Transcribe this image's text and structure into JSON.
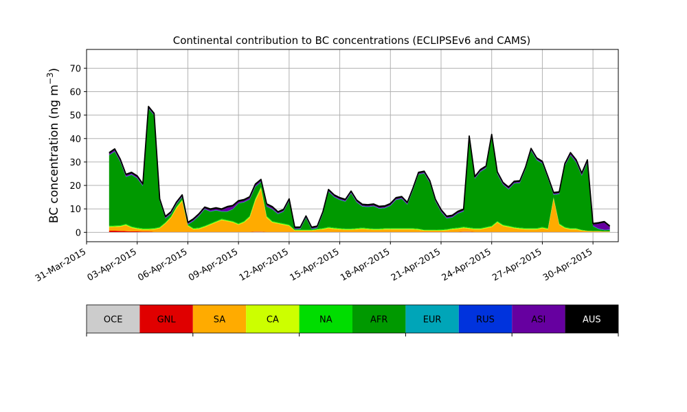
{
  "chart_data": {
    "type": "area",
    "title": "Continental contribution to BC concentrations (ECLIPSEv6 and CAMS)",
    "ylabel_text": "BC concentration (ng m",
    "ylabel_unit_exponent": "−3",
    "ylabel_suffix": ")",
    "xlabel": "",
    "grid": true,
    "legend_placement": "bottom",
    "xlim": [
      "2015-03-31T00:00",
      "2015-05-01T12:00"
    ],
    "ylim": [
      -4,
      78
    ],
    "x_ticks": [
      "31-Mar-2015",
      "03-Apr-2015",
      "06-Apr-2015",
      "09-Apr-2015",
      "12-Apr-2015",
      "15-Apr-2015",
      "18-Apr-2015",
      "21-Apr-2015",
      "24-Apr-2015",
      "27-Apr-2015",
      "30-Apr-2015"
    ],
    "x_tick_dates": [
      "2015-03-31",
      "2015-04-03",
      "2015-04-06",
      "2015-04-09",
      "2015-04-12",
      "2015-04-15",
      "2015-04-18",
      "2015-04-21",
      "2015-04-24",
      "2015-04-27",
      "2015-04-30"
    ],
    "y_ticks": [
      0,
      10,
      20,
      30,
      40,
      50,
      60,
      70
    ],
    "x": [
      "2015-04-01T08:00",
      "2015-04-01T16:00",
      "2015-04-02T00:00",
      "2015-04-02T08:00",
      "2015-04-02T16:00",
      "2015-04-03T00:00",
      "2015-04-03T08:00",
      "2015-04-03T16:00",
      "2015-04-04T00:00",
      "2015-04-04T08:00",
      "2015-04-04T16:00",
      "2015-04-05T00:00",
      "2015-04-05T08:00",
      "2015-04-05T16:00",
      "2015-04-06T00:00",
      "2015-04-06T08:00",
      "2015-04-06T16:00",
      "2015-04-07T00:00",
      "2015-04-07T08:00",
      "2015-04-07T16:00",
      "2015-04-08T00:00",
      "2015-04-08T08:00",
      "2015-04-08T16:00",
      "2015-04-09T00:00",
      "2015-04-09T08:00",
      "2015-04-09T16:00",
      "2015-04-10T00:00",
      "2015-04-10T08:00",
      "2015-04-10T16:00",
      "2015-04-11T00:00",
      "2015-04-11T08:00",
      "2015-04-11T16:00",
      "2015-04-12T00:00",
      "2015-04-12T08:00",
      "2015-04-12T16:00",
      "2015-04-13T00:00",
      "2015-04-13T08:00",
      "2015-04-13T16:00",
      "2015-04-14T00:00",
      "2015-04-14T08:00",
      "2015-04-14T16:00",
      "2015-04-15T00:00",
      "2015-04-15T08:00",
      "2015-04-15T16:00",
      "2015-04-16T00:00",
      "2015-04-16T08:00",
      "2015-04-16T16:00",
      "2015-04-17T00:00",
      "2015-04-17T08:00",
      "2015-04-17T16:00",
      "2015-04-18T00:00",
      "2015-04-18T08:00",
      "2015-04-18T16:00",
      "2015-04-19T00:00",
      "2015-04-19T08:00",
      "2015-04-19T16:00",
      "2015-04-20T00:00",
      "2015-04-20T08:00",
      "2015-04-20T16:00",
      "2015-04-21T00:00",
      "2015-04-21T08:00",
      "2015-04-21T16:00",
      "2015-04-22T00:00",
      "2015-04-22T08:00",
      "2015-04-22T16:00",
      "2015-04-23T00:00",
      "2015-04-23T08:00",
      "2015-04-23T16:00",
      "2015-04-24T00:00",
      "2015-04-24T08:00",
      "2015-04-24T16:00",
      "2015-04-25T00:00",
      "2015-04-25T08:00",
      "2015-04-25T16:00",
      "2015-04-26T00:00",
      "2015-04-26T08:00",
      "2015-04-26T16:00",
      "2015-04-27T00:00",
      "2015-04-27T08:00",
      "2015-04-27T16:00",
      "2015-04-28T00:00",
      "2015-04-28T08:00",
      "2015-04-28T16:00",
      "2015-04-29T00:00",
      "2015-04-29T08:00",
      "2015-04-29T16:00",
      "2015-04-30T00:00",
      "2015-04-30T08:00",
      "2015-04-30T16:00",
      "2015-05-01T00:00"
    ],
    "series": [
      {
        "name": "OCE",
        "color": "#cccccc",
        "values": [
          0.1,
          0.1,
          0.1,
          0.1,
          0.1,
          0.1,
          0.1,
          0.1,
          0.1,
          0.1,
          0.1,
          0.1,
          0.1,
          0.1,
          0.1,
          0.1,
          0.1,
          0.1,
          0.1,
          0.1,
          0.1,
          0.1,
          0.1,
          0.1,
          0.1,
          0.1,
          0.2,
          0.2,
          0.1,
          0.1,
          0.1,
          0.1,
          0.1,
          0.1,
          0.1,
          0.1,
          0.1,
          0.1,
          0.1,
          0.1,
          0.1,
          0.1,
          0.1,
          0.1,
          0.1,
          0.1,
          0.1,
          0.1,
          0.1,
          0.1,
          0.1,
          0.1,
          0.1,
          0.1,
          0.1,
          0.1,
          0.1,
          0.1,
          0.1,
          0.1,
          0.1,
          0.1,
          0.1,
          0.2,
          0.2,
          0.1,
          0.1,
          0.1,
          0.1,
          0.1,
          0.1,
          0.1,
          0.1,
          0.1,
          0.1,
          0.1,
          0.1,
          0.1,
          0.1,
          0.1,
          0.1,
          0.1,
          0.1,
          0.1,
          0.1,
          0.1,
          0.1,
          0.1,
          0.1,
          0.1
        ]
      },
      {
        "name": "GNL",
        "color": "#e00000",
        "values": [
          0.6,
          0.6,
          0.5,
          0.4,
          0.3,
          0.3,
          0.2,
          0.2,
          0.1,
          0.1,
          0.1,
          0.1,
          0.1,
          0.1,
          0.1,
          0.1,
          0.1,
          0.1,
          0.1,
          0.1,
          0.1,
          0.1,
          0.1,
          0.1,
          0.1,
          0.1,
          0.1,
          0.1,
          0.1,
          0.1,
          0.1,
          0.1,
          0.1,
          0.1,
          0.1,
          0.1,
          0.1,
          0.1,
          0.1,
          0.1,
          0.1,
          0.1,
          0.1,
          0.1,
          0.1,
          0.1,
          0.1,
          0.1,
          0.1,
          0.1,
          0.1,
          0.1,
          0.1,
          0.1,
          0.1,
          0.1,
          0.1,
          0.1,
          0.1,
          0.1,
          0.1,
          0.1,
          0.1,
          0.1,
          0.1,
          0.1,
          0.1,
          0.1,
          0.1,
          0.1,
          0.1,
          0.1,
          0.1,
          0.1,
          0.1,
          0.1,
          0.1,
          0.1,
          0.1,
          0.1,
          0.1,
          0.1,
          0.1,
          0.1,
          0.1,
          0.1,
          0.1,
          0.1,
          0.1,
          0.1
        ]
      },
      {
        "name": "SA",
        "color": "#ffab00",
        "values": [
          1.5,
          1.6,
          1.8,
          2.5,
          1.5,
          1.0,
          0.8,
          0.8,
          1.0,
          1.5,
          3.5,
          6.0,
          10.0,
          13.0,
          2.5,
          1.0,
          1.2,
          2.0,
          3.0,
          4.0,
          5.0,
          4.5,
          4.0,
          3.0,
          4.0,
          6.0,
          13.0,
          18.0,
          6.0,
          4.0,
          3.5,
          3.0,
          2.5,
          0.5,
          0.5,
          0.5,
          0.5,
          0.8,
          1.0,
          1.5,
          1.2,
          1.0,
          0.8,
          0.8,
          1.0,
          1.2,
          1.0,
          0.8,
          0.8,
          1.0,
          1.0,
          1.0,
          1.0,
          1.0,
          1.0,
          0.8,
          0.5,
          0.5,
          0.5,
          0.5,
          0.6,
          1.0,
          1.2,
          1.5,
          1.2,
          1.0,
          1.0,
          1.5,
          2.0,
          4.0,
          2.5,
          2.0,
          1.5,
          1.2,
          1.0,
          1.0,
          1.0,
          1.5,
          1.0,
          14.0,
          3.0,
          1.5,
          1.0,
          1.0,
          0.5,
          0.3,
          0.2,
          0.2,
          0.1,
          0.1
        ]
      },
      {
        "name": "CA",
        "color": "#ccff00",
        "values": [
          0.3,
          0.3,
          0.3,
          0.3,
          0.3,
          0.3,
          0.3,
          0.3,
          0.3,
          0.3,
          0.3,
          0.3,
          0.5,
          0.5,
          0.3,
          0.3,
          0.3,
          0.3,
          0.3,
          0.3,
          0.3,
          0.3,
          0.3,
          0.3,
          0.3,
          0.5,
          0.8,
          0.8,
          0.5,
          0.3,
          0.3,
          0.3,
          0.3,
          0.2,
          0.2,
          0.2,
          0.2,
          0.2,
          0.3,
          0.3,
          0.3,
          0.3,
          0.3,
          0.3,
          0.3,
          0.3,
          0.3,
          0.3,
          0.3,
          0.3,
          0.3,
          0.3,
          0.3,
          0.3,
          0.3,
          0.3,
          0.2,
          0.2,
          0.2,
          0.2,
          0.3,
          0.3,
          0.3,
          0.3,
          0.3,
          0.3,
          0.3,
          0.3,
          0.3,
          0.3,
          0.3,
          0.3,
          0.3,
          0.3,
          0.3,
          0.3,
          0.3,
          0.3,
          0.3,
          0.5,
          0.3,
          0.3,
          0.3,
          0.3,
          0.2,
          0.1,
          0.1,
          0.1,
          0.1,
          0.1
        ]
      },
      {
        "name": "NA",
        "color": "#00dd00",
        "values": [
          0.3,
          0.3,
          0.3,
          0.3,
          0.3,
          0.3,
          0.3,
          0.3,
          0.3,
          0.3,
          0.3,
          0.3,
          0.3,
          0.3,
          0.3,
          0.3,
          0.3,
          0.3,
          0.3,
          0.3,
          0.3,
          0.3,
          0.3,
          0.3,
          0.3,
          0.3,
          0.3,
          0.3,
          0.3,
          0.3,
          0.3,
          0.3,
          0.3,
          0.2,
          0.2,
          0.2,
          0.2,
          0.3,
          0.3,
          0.3,
          0.3,
          0.3,
          0.3,
          0.3,
          0.3,
          0.3,
          0.3,
          0.3,
          0.3,
          0.3,
          0.3,
          0.3,
          0.3,
          0.3,
          0.3,
          0.3,
          0.2,
          0.2,
          0.2,
          0.3,
          0.3,
          0.3,
          0.3,
          0.3,
          0.3,
          0.3,
          0.3,
          0.3,
          0.3,
          0.3,
          0.3,
          0.3,
          0.3,
          0.3,
          0.3,
          0.3,
          0.3,
          0.3,
          0.3,
          0.3,
          0.3,
          0.3,
          0.3,
          0.3,
          0.2,
          0.1,
          0.1,
          0.1,
          0.1,
          0.1
        ]
      },
      {
        "name": "AFR",
        "color": "#009900",
        "values": [
          30.0,
          31.5,
          27.0,
          20.0,
          22.0,
          21.0,
          18.0,
          51.0,
          48.0,
          11.0,
          1.5,
          1.0,
          1.0,
          1.0,
          0.0,
          3.0,
          5.0,
          7.0,
          5.0,
          4.5,
          3.0,
          3.5,
          5.0,
          8.5,
          8.0,
          7.0,
          5.0,
          2.0,
          4.0,
          5.0,
          3.5,
          5.0,
          10.0,
          0.2,
          0.3,
          5.0,
          0.2,
          0.3,
          6.0,
          15.0,
          13.0,
          12.0,
          11.5,
          15.0,
          11.0,
          9.0,
          9.0,
          9.5,
          8.5,
          8.5,
          9.5,
          12.0,
          12.5,
          10.0,
          16.0,
          23.0,
          24.0,
          20.0,
          12.0,
          7.5,
          4.5,
          4.5,
          6.0,
          6.5,
          38.0,
          21.0,
          24.0,
          25.0,
          38.0,
          20.0,
          17.0,
          15.5,
          18.5,
          19.0,
          25.0,
          33.0,
          29.0,
          27.0,
          21.0,
          1.0,
          12.5,
          26.0,
          31.0,
          28.0,
          23.0,
          29.0,
          2.0,
          0.8,
          0.4,
          0.5
        ]
      },
      {
        "name": "EUR",
        "color": "#00a5b8",
        "values": [
          0.1,
          0.1,
          0.1,
          0.1,
          0.1,
          0.1,
          0.1,
          0.1,
          0.1,
          0.1,
          0.1,
          0.1,
          0.1,
          0.1,
          0.1,
          0.1,
          0.1,
          0.1,
          0.1,
          0.1,
          0.1,
          0.1,
          0.1,
          0.1,
          0.1,
          0.1,
          0.1,
          0.1,
          0.1,
          0.1,
          0.1,
          0.1,
          0.1,
          0.1,
          0.1,
          0.1,
          0.1,
          0.1,
          0.1,
          0.1,
          0.1,
          0.1,
          0.1,
          0.1,
          0.1,
          0.1,
          0.1,
          0.1,
          0.1,
          0.1,
          0.1,
          0.1,
          0.1,
          0.1,
          0.1,
          0.1,
          0.1,
          0.1,
          0.1,
          0.1,
          0.1,
          0.1,
          0.1,
          0.1,
          0.1,
          0.1,
          0.1,
          0.1,
          0.1,
          0.1,
          0.1,
          0.1,
          0.1,
          0.1,
          0.1,
          0.1,
          0.1,
          0.1,
          0.1,
          0.1,
          0.1,
          0.1,
          0.1,
          0.1,
          0.1,
          0.1,
          0.1,
          0.1,
          0.1,
          0.1
        ]
      },
      {
        "name": "RUS",
        "color": "#0033dd",
        "values": [
          0.1,
          0.1,
          0.1,
          0.1,
          0.1,
          0.1,
          0.1,
          0.1,
          0.1,
          0.1,
          0.1,
          0.1,
          0.1,
          0.1,
          0.1,
          0.1,
          0.1,
          0.1,
          0.1,
          0.1,
          0.1,
          0.1,
          0.1,
          0.1,
          0.1,
          0.1,
          0.1,
          0.1,
          0.1,
          0.1,
          0.1,
          0.1,
          0.1,
          0.1,
          0.1,
          0.1,
          0.1,
          0.1,
          0.1,
          0.1,
          0.1,
          0.1,
          0.1,
          0.1,
          0.1,
          0.1,
          0.1,
          0.1,
          0.1,
          0.1,
          0.1,
          0.1,
          0.1,
          0.1,
          0.1,
          0.1,
          0.1,
          0.1,
          0.1,
          0.1,
          0.1,
          0.1,
          0.1,
          0.1,
          0.1,
          0.1,
          0.1,
          0.1,
          0.1,
          0.1,
          0.1,
          0.1,
          0.1,
          0.1,
          0.1,
          0.1,
          0.1,
          0.1,
          0.1,
          0.1,
          0.1,
          0.1,
          0.1,
          0.1,
          0.1,
          0.1,
          0.1,
          0.1,
          0.1,
          0.1
        ]
      },
      {
        "name": "ASI",
        "color": "#6600a0",
        "values": [
          0.5,
          0.5,
          0.5,
          0.5,
          0.4,
          0.4,
          0.3,
          0.3,
          0.3,
          0.3,
          0.3,
          0.3,
          0.3,
          0.3,
          0.3,
          0.3,
          0.3,
          0.3,
          0.5,
          0.5,
          0.5,
          1.5,
          1.0,
          0.5,
          0.5,
          0.5,
          0.5,
          0.5,
          0.5,
          0.5,
          0.3,
          0.3,
          0.3,
          0.2,
          0.2,
          0.2,
          0.2,
          0.2,
          0.3,
          0.3,
          0.3,
          0.3,
          0.3,
          0.3,
          0.3,
          0.3,
          0.3,
          0.3,
          0.3,
          0.3,
          0.3,
          0.3,
          0.3,
          0.3,
          0.3,
          0.3,
          0.3,
          0.3,
          0.3,
          0.3,
          0.3,
          0.3,
          0.3,
          0.3,
          0.3,
          0.3,
          0.3,
          0.3,
          0.3,
          0.3,
          0.3,
          0.3,
          0.3,
          0.3,
          0.3,
          0.3,
          0.3,
          0.3,
          0.3,
          0.3,
          0.3,
          0.3,
          0.5,
          0.5,
          0.5,
          0.5,
          0.5,
          2.0,
          3.0,
          1.0
        ]
      },
      {
        "name": "AUS",
        "color": "#000000",
        "values": [
          0.5,
          0.5,
          0.5,
          0.5,
          0.5,
          0.5,
          0.5,
          0.5,
          0.5,
          0.5,
          0.5,
          0.5,
          0.5,
          0.5,
          0.5,
          0.5,
          0.5,
          0.5,
          0.5,
          0.5,
          0.5,
          0.5,
          0.5,
          0.5,
          0.5,
          0.5,
          0.5,
          0.5,
          0.5,
          0.5,
          0.5,
          0.5,
          0.5,
          0.5,
          0.5,
          0.5,
          0.5,
          0.5,
          0.5,
          0.5,
          0.5,
          0.5,
          0.5,
          0.5,
          0.5,
          0.5,
          0.5,
          0.5,
          0.5,
          0.5,
          0.5,
          0.5,
          0.5,
          0.5,
          0.5,
          0.5,
          0.5,
          0.5,
          0.5,
          0.5,
          0.5,
          0.5,
          0.5,
          0.5,
          0.5,
          0.5,
          0.5,
          0.5,
          0.5,
          0.5,
          0.5,
          0.5,
          0.5,
          0.5,
          0.5,
          0.5,
          0.5,
          0.5,
          0.5,
          0.5,
          0.5,
          0.5,
          0.5,
          0.5,
          0.5,
          0.5,
          0.5,
          0.5,
          0.5,
          0.5
        ]
      }
    ]
  }
}
